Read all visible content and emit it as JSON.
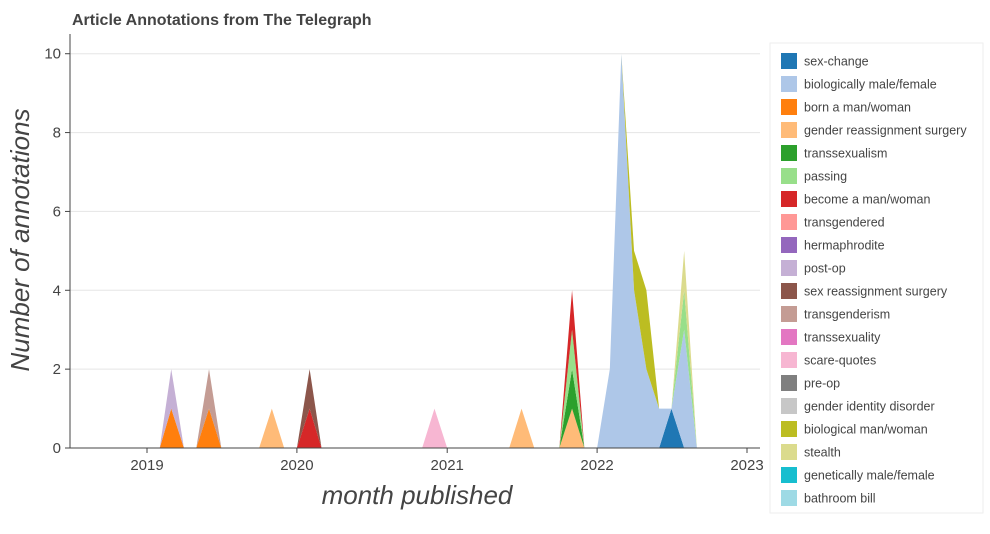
{
  "chart_data": {
    "type": "area",
    "title": "Article Annotations from The Telegraph",
    "xlabel": "month published",
    "ylabel": "Number of annotations",
    "x_range": [
      "2018-07-01",
      "2023-01-01"
    ],
    "ylim": [
      0,
      10.5
    ],
    "x_ticks": [
      {
        "label": "2019",
        "date": "2019-01-01"
      },
      {
        "label": "2020",
        "date": "2020-01-01"
      },
      {
        "label": "2021",
        "date": "2021-01-01"
      },
      {
        "label": "2022",
        "date": "2022-01-01"
      },
      {
        "label": "2023",
        "date": "2023-01-01"
      }
    ],
    "y_ticks": [
      0,
      2,
      4,
      6,
      8,
      10
    ],
    "grid": "horizontal",
    "legend_position": "right",
    "months": [
      "2019-01",
      "2019-02",
      "2019-03",
      "2019-04",
      "2019-05",
      "2019-06",
      "2019-07",
      "2019-08",
      "2019-09",
      "2019-10",
      "2019-11",
      "2019-12",
      "2020-01",
      "2020-02",
      "2020-03",
      "2020-04",
      "2020-05",
      "2020-06",
      "2020-07",
      "2020-08",
      "2020-09",
      "2020-10",
      "2020-11",
      "2020-12",
      "2021-01",
      "2021-02",
      "2021-03",
      "2021-04",
      "2021-05",
      "2021-06",
      "2021-07",
      "2021-08",
      "2021-09",
      "2021-10",
      "2021-11",
      "2021-12",
      "2022-01",
      "2022-02",
      "2022-03",
      "2022-04",
      "2022-05",
      "2022-06",
      "2022-07",
      "2022-08",
      "2022-09",
      "2022-10",
      "2022-11",
      "2022-12",
      "2023-01"
    ],
    "series": [
      {
        "name": "sex-change",
        "color": "#1f77b4",
        "values": [
          0,
          0,
          0,
          0,
          0,
          0,
          0,
          0,
          0,
          0,
          0,
          0,
          0,
          0,
          0,
          0,
          0,
          0,
          0,
          0,
          0,
          0,
          0,
          0,
          0,
          0,
          0,
          0,
          0,
          0,
          0,
          0,
          0,
          0,
          0,
          0,
          0,
          0,
          0,
          0,
          0,
          0,
          1,
          0,
          0,
          0,
          0,
          0,
          0
        ]
      },
      {
        "name": "biologically male/female",
        "color": "#aec7e8",
        "values": [
          0,
          0,
          0,
          0,
          0,
          0,
          0,
          0,
          0,
          0,
          0,
          0,
          0,
          0,
          0,
          0,
          0,
          0,
          0,
          0,
          0,
          0,
          0,
          0,
          0,
          0,
          0,
          0,
          0,
          0,
          0,
          0,
          0,
          0,
          0,
          0,
          0,
          2,
          10,
          4,
          2,
          1,
          0,
          3,
          0,
          0,
          0,
          0,
          0
        ]
      },
      {
        "name": "born a man/woman",
        "color": "#ff7f0e",
        "values": [
          0,
          0,
          1,
          0,
          0,
          1,
          0,
          0,
          0,
          0,
          0,
          0,
          0,
          0,
          0,
          0,
          0,
          0,
          0,
          0,
          0,
          0,
          0,
          0,
          0,
          0,
          0,
          0,
          0,
          0,
          0,
          0,
          0,
          0,
          0,
          0,
          0,
          0,
          0,
          0,
          0,
          0,
          0,
          0,
          0,
          0,
          0,
          0,
          0
        ]
      },
      {
        "name": "gender reassignment surgery",
        "color": "#ffbb78",
        "values": [
          0,
          0,
          0,
          0,
          0,
          0,
          0,
          0,
          0,
          0,
          1,
          0,
          0,
          0,
          0,
          0,
          0,
          0,
          0,
          0,
          0,
          0,
          0,
          0,
          0,
          0,
          0,
          0,
          0,
          0,
          1,
          0,
          0,
          0,
          1,
          0,
          0,
          0,
          0,
          0,
          0,
          0,
          0,
          0,
          0,
          0,
          0,
          0,
          0
        ]
      },
      {
        "name": "transsexualism",
        "color": "#2ca02c",
        "values": [
          0,
          0,
          0,
          0,
          0,
          0,
          0,
          0,
          0,
          0,
          0,
          0,
          0,
          0,
          0,
          0,
          0,
          0,
          0,
          0,
          0,
          0,
          0,
          0,
          0,
          0,
          0,
          0,
          0,
          0,
          0,
          0,
          0,
          0,
          1,
          0,
          0,
          0,
          0,
          0,
          0,
          0,
          0,
          0,
          0,
          0,
          0,
          0,
          0
        ]
      },
      {
        "name": "passing",
        "color": "#98df8a",
        "values": [
          0,
          0,
          0,
          0,
          0,
          0,
          0,
          0,
          0,
          0,
          0,
          0,
          0,
          0,
          0,
          0,
          0,
          0,
          0,
          0,
          0,
          0,
          0,
          0,
          0,
          0,
          0,
          0,
          0,
          0,
          0,
          0,
          0,
          0,
          1,
          0,
          0,
          0,
          0,
          0,
          0,
          0,
          0,
          1,
          0,
          0,
          0,
          0,
          0
        ]
      },
      {
        "name": "become a man/woman",
        "color": "#d62728",
        "values": [
          0,
          0,
          0,
          0,
          0,
          0,
          0,
          0,
          0,
          0,
          0,
          0,
          0,
          1,
          0,
          0,
          0,
          0,
          0,
          0,
          0,
          0,
          0,
          0,
          0,
          0,
          0,
          0,
          0,
          0,
          0,
          0,
          0,
          0,
          1,
          0,
          0,
          0,
          0,
          0,
          0,
          0,
          0,
          0,
          0,
          0,
          0,
          0,
          0
        ]
      },
      {
        "name": "transgendered",
        "color": "#ff9896",
        "values": [
          0,
          0,
          0,
          0,
          0,
          0,
          0,
          0,
          0,
          0,
          0,
          0,
          0,
          0,
          0,
          0,
          0,
          0,
          0,
          0,
          0,
          0,
          0,
          0,
          0,
          0,
          0,
          0,
          0,
          0,
          0,
          0,
          0,
          0,
          0,
          0,
          0,
          0,
          0,
          0,
          0,
          0,
          0,
          0,
          0,
          0,
          0,
          0,
          0
        ]
      },
      {
        "name": "hermaphrodite",
        "color": "#9467bd",
        "values": [
          0,
          0,
          0,
          0,
          0,
          0,
          0,
          0,
          0,
          0,
          0,
          0,
          0,
          0,
          0,
          0,
          0,
          0,
          0,
          0,
          0,
          0,
          0,
          0,
          0,
          0,
          0,
          0,
          0,
          0,
          0,
          0,
          0,
          0,
          0,
          0,
          0,
          0,
          0,
          0,
          0,
          0,
          0,
          0,
          0,
          0,
          0,
          0,
          0
        ]
      },
      {
        "name": "post-op",
        "color": "#c5b0d5",
        "values": [
          0,
          0,
          1,
          0,
          0,
          0,
          0,
          0,
          0,
          0,
          0,
          0,
          0,
          0,
          0,
          0,
          0,
          0,
          0,
          0,
          0,
          0,
          0,
          0,
          0,
          0,
          0,
          0,
          0,
          0,
          0,
          0,
          0,
          0,
          0,
          0,
          0,
          0,
          0,
          0,
          0,
          0,
          0,
          0,
          0,
          0,
          0,
          0,
          0
        ]
      },
      {
        "name": "sex reassignment surgery",
        "color": "#8c564b",
        "values": [
          0,
          0,
          0,
          0,
          0,
          0,
          0,
          0,
          0,
          0,
          0,
          0,
          0,
          1,
          0,
          0,
          0,
          0,
          0,
          0,
          0,
          0,
          0,
          0,
          0,
          0,
          0,
          0,
          0,
          0,
          0,
          0,
          0,
          0,
          0,
          0,
          0,
          0,
          0,
          0,
          0,
          0,
          0,
          0,
          0,
          0,
          0,
          0,
          0
        ]
      },
      {
        "name": "transgenderism",
        "color": "#c49c94",
        "values": [
          0,
          0,
          0,
          0,
          0,
          1,
          0,
          0,
          0,
          0,
          0,
          0,
          0,
          0,
          0,
          0,
          0,
          0,
          0,
          0,
          0,
          0,
          0,
          0,
          0,
          0,
          0,
          0,
          0,
          0,
          0,
          0,
          0,
          0,
          0,
          0,
          0,
          0,
          0,
          0,
          0,
          0,
          0,
          0,
          0,
          0,
          0,
          0,
          0
        ]
      },
      {
        "name": "transsexuality",
        "color": "#e377c2",
        "values": [
          0,
          0,
          0,
          0,
          0,
          0,
          0,
          0,
          0,
          0,
          0,
          0,
          0,
          0,
          0,
          0,
          0,
          0,
          0,
          0,
          0,
          0,
          0,
          0,
          0,
          0,
          0,
          0,
          0,
          0,
          0,
          0,
          0,
          0,
          0,
          0,
          0,
          0,
          0,
          0,
          0,
          0,
          0,
          0,
          0,
          0,
          0,
          0,
          0
        ]
      },
      {
        "name": "scare-quotes",
        "color": "#f7b6d2",
        "values": [
          0,
          0,
          0,
          0,
          0,
          0,
          0,
          0,
          0,
          0,
          0,
          0,
          0,
          0,
          0,
          0,
          0,
          0,
          0,
          0,
          0,
          0,
          0,
          1,
          0,
          0,
          0,
          0,
          0,
          0,
          0,
          0,
          0,
          0,
          0,
          0,
          0,
          0,
          0,
          0,
          0,
          0,
          0,
          0,
          0,
          0,
          0,
          0,
          0
        ]
      },
      {
        "name": "pre-op",
        "color": "#7f7f7f",
        "values": [
          0,
          0,
          0,
          0,
          0,
          0,
          0,
          0,
          0,
          0,
          0,
          0,
          0,
          0,
          0,
          0,
          0,
          0,
          0,
          0,
          0,
          0,
          0,
          0,
          0,
          0,
          0,
          0,
          0,
          0,
          0,
          0,
          0,
          0,
          0,
          0,
          0,
          0,
          0,
          0,
          0,
          0,
          0,
          0,
          0,
          0,
          0,
          0,
          0
        ]
      },
      {
        "name": "gender identity disorder",
        "color": "#c7c7c7",
        "values": [
          0,
          0,
          0,
          0,
          0,
          0,
          0,
          0,
          0,
          0,
          0,
          0,
          0,
          0,
          0,
          0,
          0,
          0,
          0,
          0,
          0,
          0,
          0,
          0,
          0,
          0,
          0,
          0,
          0,
          0,
          0,
          0,
          0,
          0,
          0,
          0,
          0,
          0,
          0,
          0,
          0,
          0,
          0,
          0,
          0,
          0,
          0,
          0,
          0
        ]
      },
      {
        "name": "biological man/woman",
        "color": "#bcbd22",
        "values": [
          0,
          0,
          0,
          0,
          0,
          0,
          0,
          0,
          0,
          0,
          0,
          0,
          0,
          0,
          0,
          0,
          0,
          0,
          0,
          0,
          0,
          0,
          0,
          0,
          0,
          0,
          0,
          0,
          0,
          0,
          0,
          0,
          0,
          0,
          0,
          0,
          0,
          0,
          0,
          1,
          2,
          0,
          0,
          0,
          0,
          0,
          0,
          0,
          0
        ]
      },
      {
        "name": "stealth",
        "color": "#dbdb8d",
        "values": [
          0,
          0,
          0,
          0,
          0,
          0,
          0,
          0,
          0,
          0,
          0,
          0,
          0,
          0,
          0,
          0,
          0,
          0,
          0,
          0,
          0,
          0,
          0,
          0,
          0,
          0,
          0,
          0,
          0,
          0,
          0,
          0,
          0,
          0,
          0,
          0,
          0,
          0,
          0,
          0,
          0,
          0,
          0,
          1,
          0,
          0,
          0,
          0,
          0
        ]
      },
      {
        "name": "genetically male/female",
        "color": "#17becf",
        "values": [
          0,
          0,
          0,
          0,
          0,
          0,
          0,
          0,
          0,
          0,
          0,
          0,
          0,
          0,
          0,
          0,
          0,
          0,
          0,
          0,
          0,
          0,
          0,
          0,
          0,
          0,
          0,
          0,
          0,
          0,
          0,
          0,
          0,
          0,
          0,
          0,
          0,
          0,
          0,
          0,
          0,
          0,
          0,
          0,
          0,
          0,
          0,
          0,
          0
        ]
      },
      {
        "name": "bathroom bill",
        "color": "#9edae5",
        "values": [
          0,
          0,
          0,
          0,
          0,
          0,
          0,
          0,
          0,
          0,
          0,
          0,
          0,
          0,
          0,
          0,
          0,
          0,
          0,
          0,
          0,
          0,
          0,
          0,
          0,
          0,
          0,
          0,
          0,
          0,
          0,
          0,
          0,
          0,
          0,
          0,
          0,
          0,
          0,
          0,
          0,
          0,
          0,
          0,
          0,
          0,
          0,
          0,
          0
        ]
      }
    ]
  }
}
